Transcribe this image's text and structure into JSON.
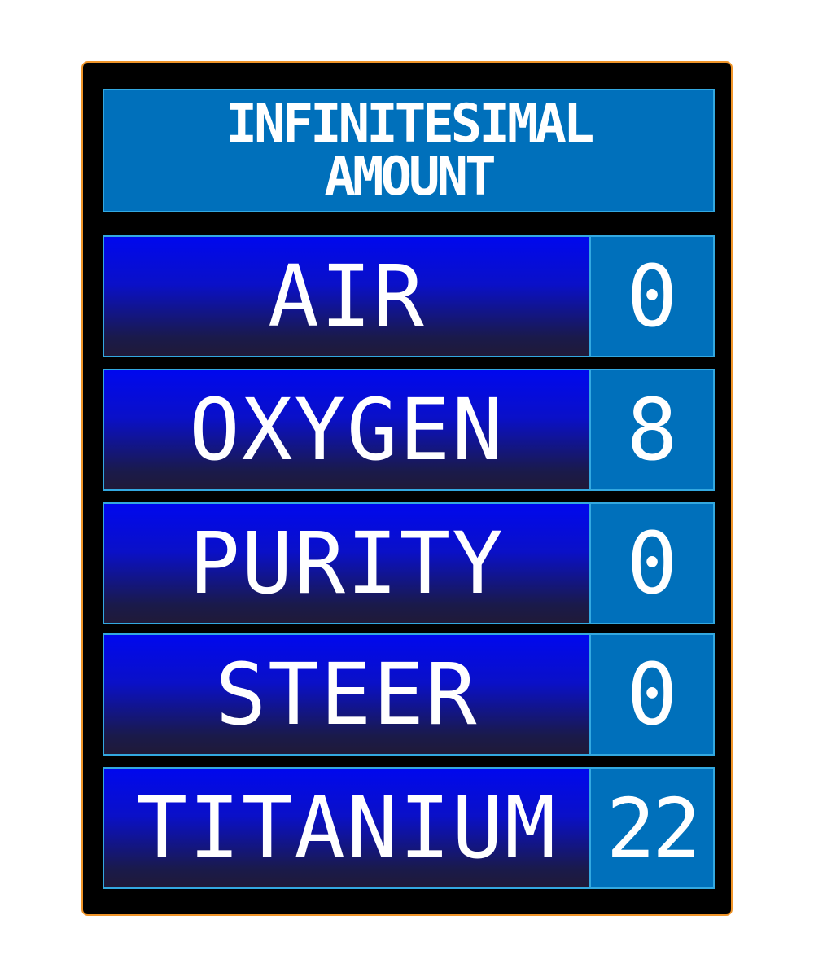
{
  "board": {
    "title": "INFINITESIMAL AMOUNT",
    "answers": [
      {
        "label": "AIR",
        "points": "0"
      },
      {
        "label": "OXYGEN",
        "points": "8"
      },
      {
        "label": "PURITY",
        "points": "0"
      },
      {
        "label": "STEER",
        "points": "0"
      },
      {
        "label": "TITANIUM",
        "points": "22"
      }
    ]
  },
  "colors": {
    "border": "#f0952a",
    "title_bg": "#0070bb",
    "answer_top": "#0008ee",
    "answer_bottom": "#201a38",
    "outline": "#33a8e0"
  }
}
